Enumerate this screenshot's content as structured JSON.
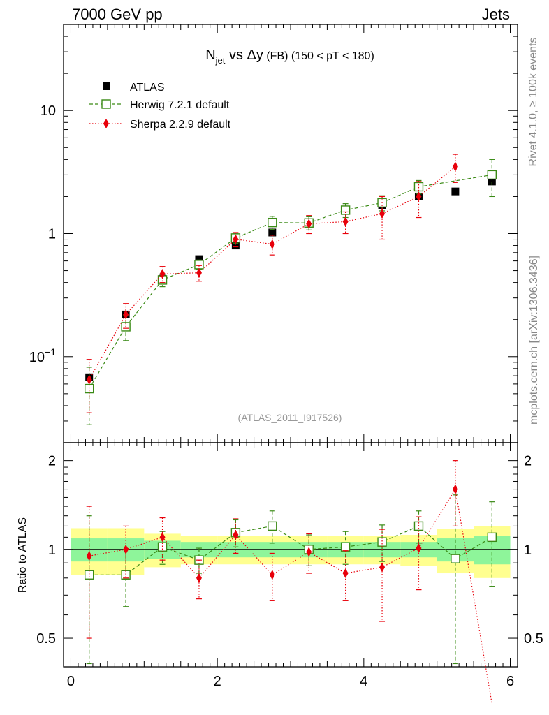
{
  "header": {
    "left": "7000 GeV pp",
    "right": "Jets"
  },
  "side_labels": {
    "rivet": "Rivet 4.1.0, ≥ 100k events",
    "mcplots": "mcplots.cern.ch [arXiv:1306.3436]"
  },
  "chart_data": {
    "type": "scatter",
    "title": {
      "main": "N",
      "sub": "jet",
      "rest": " vs Δy",
      "fb": " (FB)",
      "range": " (150 < pT < 180)"
    },
    "analysis_label": "(ATLAS_2011_I917526)",
    "ratio_ylabel": "Ratio to ATLAS",
    "x": [
      0.25,
      0.75,
      1.25,
      1.75,
      2.25,
      2.75,
      3.25,
      3.75,
      4.25,
      4.75,
      5.25,
      5.75
    ],
    "xlim": [
      -0.1,
      6.1
    ],
    "ylim_log": [
      0.02,
      50
    ],
    "ratio_ylim": [
      0.4,
      2.3
    ],
    "x_ticks": [
      "0",
      "2",
      "4",
      "6"
    ],
    "y_ticks": [
      "10",
      "1",
      "10−1"
    ],
    "ratio_ticks": [
      "2",
      "1",
      "0.5"
    ],
    "legend": [
      "ATLAS",
      "Herwig 7.2.1 default",
      "Sherpa 2.2.9 default"
    ],
    "series": [
      {
        "name": "ATLAS",
        "color": "#000000",
        "values": [
          0.068,
          0.22,
          0.43,
          0.62,
          0.8,
          1.02,
          1.22,
          1.55,
          1.7,
          2.0,
          2.2,
          2.65
        ],
        "ratio_band_inner": [
          0.09,
          0.09,
          0.07,
          0.06,
          0.06,
          0.06,
          0.06,
          0.06,
          0.06,
          0.06,
          0.09,
          0.11
        ],
        "ratio_band_outer": [
          0.18,
          0.18,
          0.13,
          0.11,
          0.11,
          0.11,
          0.11,
          0.11,
          0.11,
          0.12,
          0.17,
          0.2
        ]
      },
      {
        "name": "Herwig 7.2.1 default",
        "color": "#3a8a15",
        "values": [
          0.055,
          0.175,
          0.42,
          0.56,
          0.92,
          1.23,
          1.22,
          1.55,
          1.78,
          2.4,
          null,
          3.0
        ],
        "errors": [
          0.027,
          0.04,
          0.05,
          0.05,
          0.09,
          0.15,
          0.15,
          0.2,
          0.25,
          0.3,
          null,
          1.0
        ],
        "ratio": [
          0.82,
          0.82,
          1.02,
          0.92,
          1.14,
          1.2,
          1.0,
          1.02,
          1.06,
          1.2,
          0.93,
          1.1
        ],
        "ratio_err": [
          0.48,
          0.18,
          0.13,
          0.09,
          0.12,
          0.15,
          0.12,
          0.13,
          0.15,
          0.15,
          0.6,
          0.35
        ]
      },
      {
        "name": "Sherpa 2.2.9 default",
        "color": "#e8000a",
        "values": [
          0.065,
          0.22,
          0.47,
          0.48,
          0.9,
          0.82,
          1.2,
          1.25,
          1.45,
          2.0,
          3.5,
          null
        ],
        "errors": [
          0.03,
          0.05,
          0.07,
          0.07,
          0.12,
          0.15,
          0.2,
          0.25,
          0.55,
          0.65,
          0.9,
          null
        ],
        "ratio": [
          0.95,
          1.0,
          1.1,
          0.8,
          1.12,
          0.82,
          0.98,
          0.83,
          0.87,
          1.01,
          1.6,
          0.3
        ],
        "ratio_err": [
          0.45,
          0.2,
          0.18,
          0.12,
          0.15,
          0.15,
          0.15,
          0.16,
          0.3,
          0.28,
          0.4,
          0.0
        ]
      }
    ]
  }
}
